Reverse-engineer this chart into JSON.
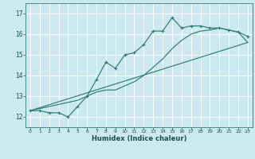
{
  "xlabel": "Humidex (Indice chaleur)",
  "ylabel": "",
  "bg_color": "#cce8f0",
  "grid_color": "#ffffff",
  "line_color": "#2e7d72",
  "xlim": [
    -0.5,
    23.5
  ],
  "ylim": [
    11.5,
    17.5
  ],
  "xticks": [
    0,
    1,
    2,
    3,
    4,
    5,
    6,
    7,
    8,
    9,
    10,
    11,
    12,
    13,
    14,
    15,
    16,
    17,
    18,
    19,
    20,
    21,
    22,
    23
  ],
  "yticks": [
    12,
    13,
    14,
    15,
    16,
    17
  ],
  "line1_x": [
    0,
    1,
    2,
    3,
    4,
    5,
    6,
    7,
    8,
    9,
    10,
    11,
    12,
    13,
    14,
    15,
    16,
    17,
    18,
    19,
    20,
    21,
    22,
    23
  ],
  "line1_y": [
    12.3,
    12.3,
    12.2,
    12.2,
    12.0,
    12.5,
    13.0,
    13.8,
    14.65,
    14.35,
    15.0,
    15.1,
    15.5,
    16.15,
    16.15,
    16.8,
    16.3,
    16.4,
    16.4,
    16.3,
    16.3,
    16.2,
    16.1,
    15.9
  ],
  "line2_x": [
    0,
    1,
    2,
    3,
    4,
    5,
    6,
    7,
    8,
    9,
    10,
    11,
    12,
    13,
    14,
    15,
    16,
    17,
    18,
    19,
    20,
    21,
    22,
    23
  ],
  "line2_y": [
    12.3,
    12.4,
    12.5,
    12.6,
    12.7,
    12.8,
    13.0,
    13.2,
    13.3,
    13.3,
    13.5,
    13.7,
    14.0,
    14.4,
    14.8,
    15.3,
    15.7,
    16.0,
    16.15,
    16.2,
    16.3,
    16.2,
    16.1,
    15.6
  ],
  "line3_x": [
    0,
    23
  ],
  "line3_y": [
    12.3,
    15.6
  ]
}
